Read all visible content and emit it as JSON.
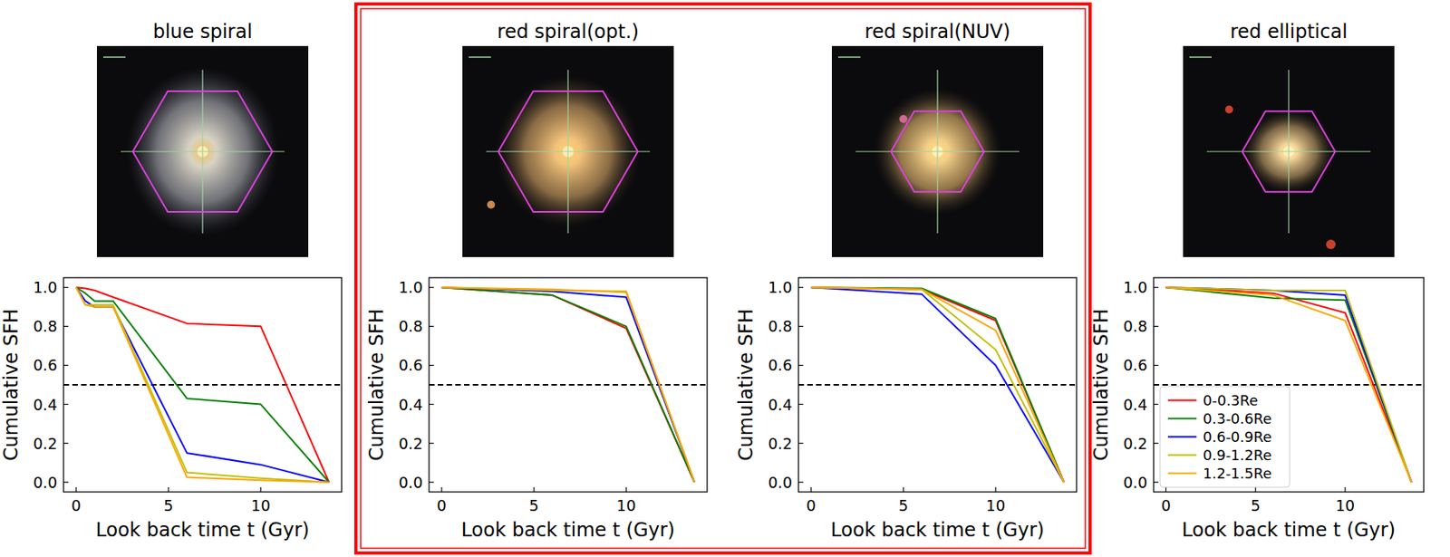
{
  "chart_data": [
    {
      "type": "line",
      "title": "blue spiral",
      "x_label": "Look back time t (Gyr)",
      "y_label": "Cumulative SFH",
      "x": [
        0,
        0.5,
        1,
        2,
        6,
        10,
        13.7
      ],
      "series": [
        {
          "color": "#ff0000",
          "values": [
            1.0,
            0.995,
            0.985,
            0.95,
            0.815,
            0.8,
            0.0
          ]
        },
        {
          "color": "#008000",
          "values": [
            1.0,
            0.97,
            0.93,
            0.93,
            0.43,
            0.4,
            0.0
          ]
        },
        {
          "color": "#0000ff",
          "values": [
            1.0,
            0.93,
            0.9,
            0.9,
            0.15,
            0.09,
            0.0
          ]
        },
        {
          "color": "#bfbf00",
          "values": [
            1.0,
            0.91,
            0.91,
            0.91,
            0.05,
            0.02,
            0.0
          ]
        },
        {
          "color": "#ffa500",
          "values": [
            1.0,
            0.91,
            0.9,
            0.9,
            0.025,
            0.01,
            0.0
          ]
        }
      ],
      "reference_line": {
        "value": 0.5,
        "line_style": "dashed",
        "color": "#000000"
      },
      "xlim": [
        -0.685,
        14.385
      ],
      "xticks": [
        0,
        5,
        10
      ],
      "ylim": [
        -0.05,
        1.05
      ],
      "yticks": [
        {
          "value": 0,
          "label": "0.0"
        },
        {
          "value": 0.2,
          "label": "0.2"
        },
        {
          "value": 0.4,
          "label": "0.4"
        },
        {
          "value": 0.6,
          "label": "0.6"
        },
        {
          "value": 0.8,
          "label": "0.8"
        },
        {
          "value": 1,
          "label": "1.0"
        }
      ]
    },
    {
      "type": "line",
      "title": "red spiral(opt.)",
      "x_label": "Look back time t (Gyr)",
      "y_label": "Cumulative SFH",
      "x": [
        0,
        6,
        10,
        13.7
      ],
      "series": [
        {
          "color": "#ff0000",
          "values": [
            1.0,
            0.96,
            0.79,
            0.0
          ]
        },
        {
          "color": "#008000",
          "values": [
            1.0,
            0.96,
            0.8,
            0.0
          ]
        },
        {
          "color": "#0000ff",
          "values": [
            1.0,
            0.98,
            0.95,
            0.0
          ]
        },
        {
          "color": "#bfbf00",
          "values": [
            1.0,
            0.985,
            0.98,
            0.0
          ]
        },
        {
          "color": "#ffa500",
          "values": [
            1.0,
            0.99,
            0.975,
            0.0
          ]
        }
      ],
      "reference_line": {
        "value": 0.5,
        "line_style": "dashed",
        "color": "#000000"
      },
      "xlim": [
        -0.685,
        14.385
      ],
      "xticks": [
        0,
        5,
        10
      ],
      "ylim": [
        -0.05,
        1.05
      ],
      "yticks": [
        {
          "value": 0,
          "label": "0.0"
        },
        {
          "value": 0.2,
          "label": "0.2"
        },
        {
          "value": 0.4,
          "label": "0.4"
        },
        {
          "value": 0.6,
          "label": "0.6"
        },
        {
          "value": 0.8,
          "label": "0.8"
        },
        {
          "value": 1,
          "label": "1.0"
        }
      ]
    },
    {
      "type": "line",
      "title": "red spiral(NUV)",
      "x_label": "Look back time t (Gyr)",
      "y_label": "Cumulative SFH",
      "x": [
        0,
        6,
        10,
        13.7
      ],
      "series": [
        {
          "color": "#ff0000",
          "values": [
            1.0,
            0.99,
            0.83,
            0.0
          ]
        },
        {
          "color": "#008000",
          "values": [
            1.0,
            0.995,
            0.84,
            0.0
          ]
        },
        {
          "color": "#0000ff",
          "values": [
            1.0,
            0.965,
            0.6,
            0.0
          ]
        },
        {
          "color": "#bfbf00",
          "values": [
            1.0,
            0.99,
            0.68,
            0.0
          ]
        },
        {
          "color": "#ffa500",
          "values": [
            1.0,
            0.99,
            0.78,
            0.0
          ]
        }
      ],
      "reference_line": {
        "value": 0.5,
        "line_style": "dashed",
        "color": "#000000"
      },
      "xlim": [
        -0.685,
        14.385
      ],
      "xticks": [
        0,
        5,
        10
      ],
      "ylim": [
        -0.05,
        1.05
      ],
      "yticks": [
        {
          "value": 0,
          "label": "0.0"
        },
        {
          "value": 0.2,
          "label": "0.2"
        },
        {
          "value": 0.4,
          "label": "0.4"
        },
        {
          "value": 0.6,
          "label": "0.6"
        },
        {
          "value": 0.8,
          "label": "0.8"
        },
        {
          "value": 1,
          "label": "1.0"
        }
      ]
    },
    {
      "type": "line",
      "title": "red elliptical",
      "x_label": "Look back time t (Gyr)",
      "y_label": "Cumulative SFH",
      "x": [
        0,
        6,
        10,
        13.7
      ],
      "series": [
        {
          "name": "0-0.3Re",
          "color": "#ff0000",
          "values": [
            1.0,
            0.97,
            0.87,
            0.0
          ]
        },
        {
          "name": "0.3-0.6Re",
          "color": "#008000",
          "values": [
            1.0,
            0.945,
            0.935,
            0.0
          ]
        },
        {
          "name": "0.6-0.9Re",
          "color": "#0000ff",
          "values": [
            1.0,
            0.985,
            0.96,
            0.0
          ]
        },
        {
          "name": "0.9-1.2Re",
          "color": "#bfbf00",
          "values": [
            1.0,
            0.985,
            0.985,
            0.0
          ]
        },
        {
          "name": "1.2-1.5Re",
          "color": "#ffa500",
          "values": [
            1.0,
            0.96,
            0.83,
            0.0
          ]
        }
      ],
      "reference_line": {
        "value": 0.5,
        "line_style": "dashed",
        "color": "#000000"
      },
      "legend": "lower left",
      "xlim": [
        -0.685,
        14.385
      ],
      "xticks": [
        0,
        5,
        10
      ],
      "ylim": [
        -0.05,
        1.05
      ],
      "yticks": [
        {
          "value": 0,
          "label": "0.0"
        },
        {
          "value": 0.2,
          "label": "0.2"
        },
        {
          "value": 0.4,
          "label": "0.4"
        },
        {
          "value": 0.6,
          "label": "0.6"
        },
        {
          "value": 0.8,
          "label": "0.8"
        },
        {
          "value": 1,
          "label": "1.0"
        }
      ]
    }
  ]
}
